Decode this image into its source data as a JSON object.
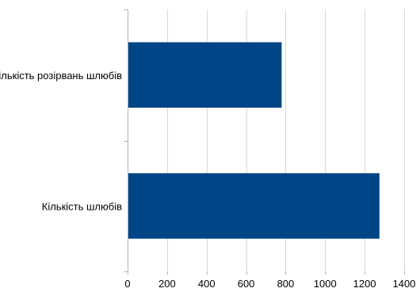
{
  "chart_data": {
    "type": "bar",
    "orientation": "horizontal",
    "categories": [
      "Кількість розірвань шлюбів",
      "Кількість шлюбів"
    ],
    "values": [
      780,
      1275
    ],
    "xlim": [
      0,
      1400
    ],
    "xticks": [
      "0",
      "200",
      "400",
      "600",
      "800",
      "1000",
      "1200",
      "1400"
    ],
    "title": "",
    "xlabel": "",
    "ylabel": "",
    "grid": true,
    "legend": "none",
    "bar_color": "#004586",
    "grid_color": "#d9d9d9",
    "axis_color": "#b3b3b3"
  }
}
